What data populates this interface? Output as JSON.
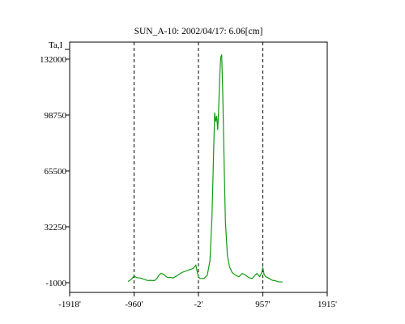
{
  "chart_data": {
    "type": "line",
    "title": "SUN_A-10: 2002/04/17: 6.06[cm]",
    "ylabel": "Ta,I",
    "xlabel": "",
    "xlim": [
      -1918,
      1915
    ],
    "ylim": [
      -1000,
      132000
    ],
    "x_ticks": [
      -1918,
      -960,
      -2,
      957,
      1915
    ],
    "x_tick_labels": [
      "-1918'",
      "-960'",
      "-2'",
      "957'",
      "1915'"
    ],
    "y_ticks": [
      -1000,
      32250,
      65500,
      98750,
      132000
    ],
    "y_tick_labels": [
      "-1000",
      "32250",
      "65500",
      "98750",
      "132000"
    ],
    "vlines": [
      -960,
      -2,
      957
    ],
    "grid": false,
    "legend": "none",
    "colors": {
      "series": "#119911",
      "vlines": "#000000",
      "frame": "#000000"
    },
    "series": [
      {
        "x": [
          -1050,
          -1000,
          -960,
          -920,
          -870,
          -800,
          -760,
          -700,
          -660,
          -620,
          -590,
          -560,
          -520,
          -480,
          -450,
          -420,
          -380,
          -320,
          -250,
          -150,
          -80,
          -40,
          -20,
          -2,
          20,
          80,
          130,
          170,
          200,
          225,
          240,
          255,
          270,
          285,
          300,
          315,
          330,
          345,
          360,
          380,
          400,
          430,
          460,
          500,
          550,
          600,
          650,
          700,
          750,
          800,
          830,
          870,
          910,
          940,
          957,
          975,
          1000,
          1030,
          1060,
          1100,
          1140,
          1180,
          1250
        ],
        "y": [
          -300,
          1000,
          3000,
          2000,
          1800,
          900,
          300,
          400,
          200,
          1500,
          3500,
          4600,
          4000,
          2500,
          2000,
          2200,
          1800,
          3200,
          5000,
          6500,
          7500,
          9500,
          5500,
          2500,
          1500,
          1500,
          3500,
          12000,
          38000,
          78000,
          100000,
          95000,
          98000,
          90000,
          103000,
          122000,
          133000,
          134500,
          112000,
          70000,
          35000,
          15000,
          8500,
          5000,
          3500,
          2500,
          4500,
          3500,
          2000,
          1500,
          3000,
          4500,
          2500,
          5000,
          8000,
          4000,
          2500,
          2000,
          1300,
          400,
          200,
          -400,
          -600
        ]
      }
    ]
  }
}
